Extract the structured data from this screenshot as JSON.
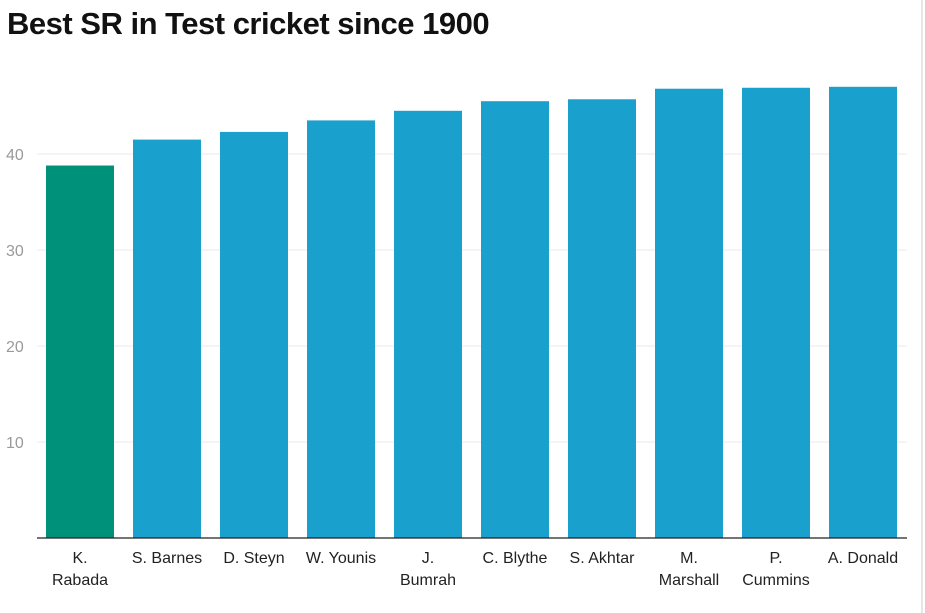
{
  "chart_data": {
    "type": "bar",
    "title": "Best SR in Test cricket since 1900",
    "xlabel": "",
    "ylabel": "",
    "categories": [
      "K. Rabada",
      "S. Barnes",
      "D. Steyn",
      "W. Younis",
      "J. Bumrah",
      "C. Blythe",
      "S. Akhtar",
      "M. Marshall",
      "P. Cummins",
      "A. Donald"
    ],
    "category_label_lines": [
      [
        "K.",
        "Rabada"
      ],
      [
        "S. Barnes"
      ],
      [
        "D. Steyn"
      ],
      [
        "W. Younis"
      ],
      [
        "J.",
        "Bumrah"
      ],
      [
        "C. Blythe"
      ],
      [
        "S. Akhtar"
      ],
      [
        "M.",
        "Marshall"
      ],
      [
        "P.",
        "Cummins"
      ],
      [
        "A. Donald"
      ]
    ],
    "values": [
      38.8,
      41.5,
      42.3,
      43.5,
      44.5,
      45.5,
      45.7,
      46.8,
      46.9,
      47.0
    ],
    "ylim": [
      0,
      50
    ],
    "yticks": [
      10,
      20,
      30,
      40
    ],
    "grid": true,
    "legend": "none",
    "highlight_index": 0,
    "colors": {
      "highlight": "#00917a",
      "bar": "#1aa0cc",
      "grid": "#e8e8e8",
      "axis": "#222222",
      "tick_text": "#9a9a9a",
      "label_text": "#222222"
    }
  }
}
